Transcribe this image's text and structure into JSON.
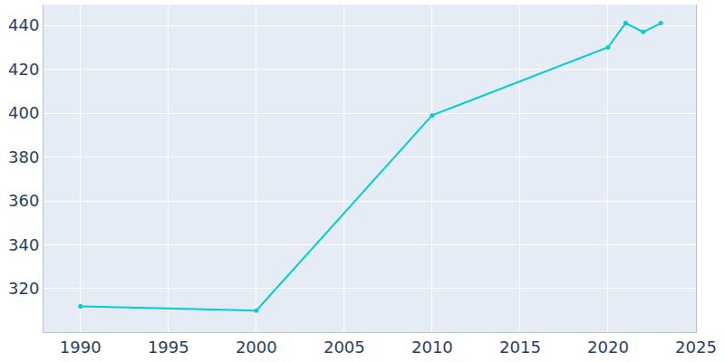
{
  "chart_data": {
    "type": "line",
    "x": [
      1990,
      2000,
      2010,
      2020,
      2021,
      2022,
      2023
    ],
    "values": [
      312,
      310,
      399,
      430,
      441,
      437,
      441
    ],
    "color": "#00ced1",
    "marker": "circle",
    "xlim": [
      1987.9,
      2025
    ],
    "xticks": [
      1990,
      1995,
      2000,
      2005,
      2010,
      2015,
      2020,
      2025
    ],
    "ylim": [
      300.2,
      449.5
    ],
    "yticks": [
      320,
      340,
      360,
      380,
      400,
      420,
      440
    ],
    "grid": true
  }
}
